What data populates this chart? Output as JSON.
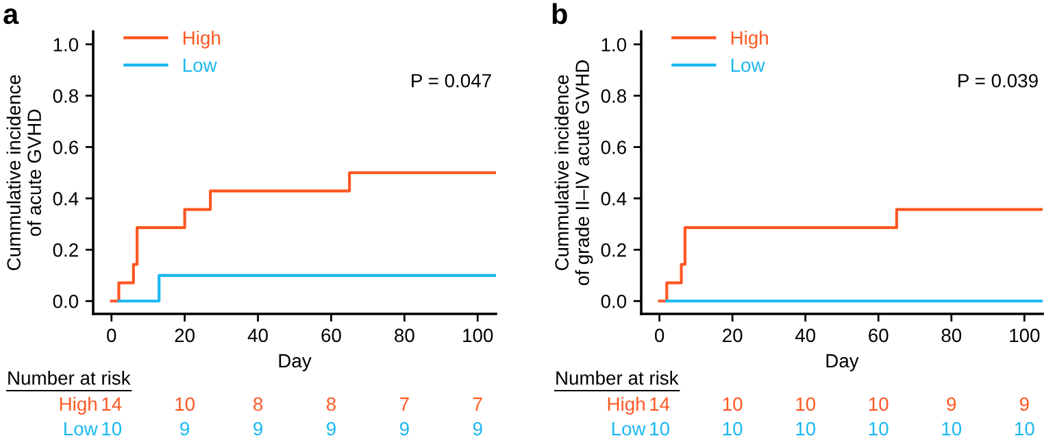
{
  "chart_data": [
    {
      "type": "step",
      "title": "a",
      "xlabel": "Day",
      "ylabel": "Cummulative incidence\nof acute GVHD",
      "xlim": [
        -5,
        105
      ],
      "ylim": [
        -0.05,
        1.05
      ],
      "xticks": [
        0,
        20,
        40,
        60,
        80,
        100
      ],
      "yticks": [
        {
          "value": 0,
          "label": "0.0"
        },
        {
          "value": 0.2,
          "label": "0.2"
        },
        {
          "value": 0.4,
          "label": "0.4"
        },
        {
          "value": 0.6,
          "label": "0.6"
        },
        {
          "value": 0.8,
          "label": "0.8"
        },
        {
          "value": 1,
          "label": "1.0"
        }
      ],
      "legend": "top left",
      "grid": false,
      "series": [
        {
          "name": "High",
          "color": "#fe5722",
          "x": [
            0,
            2,
            6,
            7,
            20,
            27,
            65,
            105
          ],
          "values": [
            0,
            0.071,
            0.143,
            0.286,
            0.357,
            0.429,
            0.5,
            0.5
          ]
        },
        {
          "name": "Low",
          "color": "#1ab8f0",
          "x": [
            2,
            13,
            105
          ],
          "values": [
            0,
            0.1,
            0.1
          ]
        }
      ],
      "annotations": [
        "P = 0.047",
        "Number at risk",
        "High",
        "14",
        "10",
        "8",
        "8",
        "7",
        "7",
        "Low",
        "10",
        "9",
        "9",
        "9",
        "9",
        "9"
      ]
    },
    {
      "type": "step",
      "title": "b",
      "xlabel": "Day",
      "ylabel": "Cummulative incidence\nof grade II–IV acute GVHD",
      "xlim": [
        -5,
        105
      ],
      "ylim": [
        -0.05,
        1.05
      ],
      "xticks": [
        0,
        20,
        40,
        60,
        80,
        100
      ],
      "yticks": [
        {
          "value": 0,
          "label": "0.0"
        },
        {
          "value": 0.2,
          "label": "0.2"
        },
        {
          "value": 0.4,
          "label": "0.4"
        },
        {
          "value": 0.6,
          "label": "0.6"
        },
        {
          "value": 0.8,
          "label": "0.8"
        },
        {
          "value": 1,
          "label": "1.0"
        }
      ],
      "legend": "top left",
      "grid": false,
      "series": [
        {
          "name": "High",
          "color": "#fe5722",
          "x": [
            0,
            2,
            6,
            7,
            65,
            105
          ],
          "values": [
            0,
            0.071,
            0.143,
            0.286,
            0.357,
            0.357
          ]
        },
        {
          "name": "Low",
          "color": "#1ab8f0",
          "x": [
            2,
            105
          ],
          "values": [
            0,
            0
          ]
        }
      ],
      "annotations": [
        "P = 0.039",
        "Number at risk",
        "High",
        "14",
        "10",
        "10",
        "10",
        "9",
        "9",
        "Low",
        "10",
        "10",
        "10",
        "10",
        "10",
        "10"
      ]
    }
  ]
}
